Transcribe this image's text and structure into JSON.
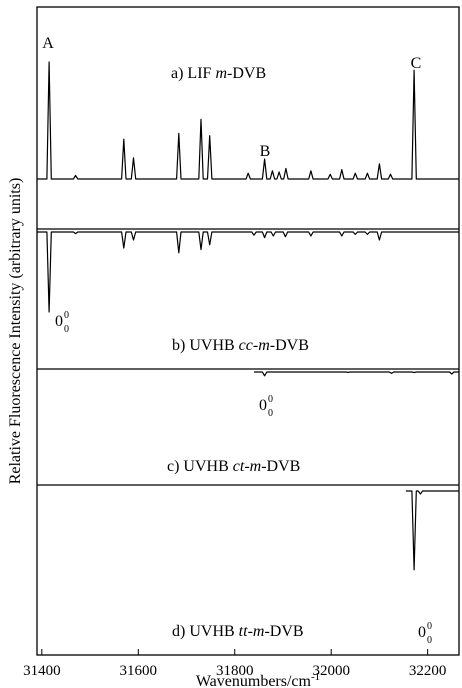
{
  "chart_data": {
    "type": "line",
    "xlabel": "Wavenumbers/cm",
    "xlabel_sup": "-1",
    "ylabel": "Relative Fluorescence Intensity (arbitrary units)",
    "xlim": [
      31390,
      32265
    ],
    "xticks": [
      31400,
      31600,
      31800,
      32000,
      32200
    ],
    "grid": false,
    "panels": [
      {
        "label_prefix": "a) LIF ",
        "label_italic": "m",
        "label_suffix": "-DVB",
        "direction": "up",
        "x_start": 31390,
        "x_end": 32265,
        "peaks": [
          {
            "x": 31415,
            "h": 1.0
          },
          {
            "x": 31470,
            "h": 0.03
          },
          {
            "x": 31570,
            "h": 0.34
          },
          {
            "x": 31590,
            "h": 0.18
          },
          {
            "x": 31684,
            "h": 0.39
          },
          {
            "x": 31730,
            "h": 0.51
          },
          {
            "x": 31748,
            "h": 0.37
          },
          {
            "x": 31828,
            "h": 0.05
          },
          {
            "x": 31862,
            "h": 0.17
          },
          {
            "x": 31878,
            "h": 0.07
          },
          {
            "x": 31892,
            "h": 0.06
          },
          {
            "x": 31906,
            "h": 0.09
          },
          {
            "x": 31958,
            "h": 0.07
          },
          {
            "x": 31998,
            "h": 0.04
          },
          {
            "x": 32022,
            "h": 0.08
          },
          {
            "x": 32050,
            "h": 0.05
          },
          {
            "x": 32075,
            "h": 0.05
          },
          {
            "x": 32100,
            "h": 0.13
          },
          {
            "x": 32123,
            "h": 0.04
          },
          {
            "x": 32172,
            "h": 0.93
          }
        ]
      },
      {
        "label_prefix": "b) UVHB ",
        "label_italic": "cc-m",
        "label_suffix": "-DVB",
        "direction": "down",
        "x_start": 31390,
        "x_end": 32265,
        "origin_x": 31415,
        "peaks": [
          {
            "x": 31415,
            "h": 1.0
          },
          {
            "x": 31470,
            "h": 0.02
          },
          {
            "x": 31570,
            "h": 0.2
          },
          {
            "x": 31590,
            "h": 0.1
          },
          {
            "x": 31684,
            "h": 0.26
          },
          {
            "x": 31730,
            "h": 0.22
          },
          {
            "x": 31748,
            "h": 0.16
          },
          {
            "x": 31840,
            "h": 0.04
          },
          {
            "x": 31862,
            "h": 0.07
          },
          {
            "x": 31880,
            "h": 0.05
          },
          {
            "x": 31905,
            "h": 0.06
          },
          {
            "x": 31958,
            "h": 0.05
          },
          {
            "x": 32022,
            "h": 0.05
          },
          {
            "x": 32050,
            "h": 0.03
          },
          {
            "x": 32075,
            "h": 0.03
          },
          {
            "x": 32100,
            "h": 0.1
          }
        ]
      },
      {
        "label_prefix": "c) UVHB ",
        "label_italic": "ct-m",
        "label_suffix": "-DVB",
        "direction": "down",
        "x_start": 31840,
        "x_end": 32265,
        "origin_x": 31862,
        "peaks": [
          {
            "x": 31862,
            "h": 0.19
          },
          {
            "x": 32035,
            "h": 0.02
          },
          {
            "x": 32125,
            "h": 0.07
          },
          {
            "x": 32172,
            "h": 0.03
          },
          {
            "x": 32250,
            "h": 0.1
          }
        ]
      },
      {
        "label_prefix": "d) UVHB ",
        "label_italic": "tt-m",
        "label_suffix": "-DVB",
        "direction": "down",
        "x_start": 32155,
        "x_end": 32265,
        "origin_x": 32172,
        "peaks": [
          {
            "x": 32172,
            "h": 0.78
          },
          {
            "x": 32185,
            "h": 0.03
          }
        ]
      }
    ],
    "peak_labels": [
      {
        "text": "A",
        "panel": 0,
        "x": 31415
      },
      {
        "text": "B",
        "panel": 0,
        "x": 31862
      },
      {
        "text": "C",
        "panel": 0,
        "x": 32172
      }
    ],
    "origin_label": {
      "base": "0",
      "sup": "0",
      "sub": "0"
    }
  }
}
